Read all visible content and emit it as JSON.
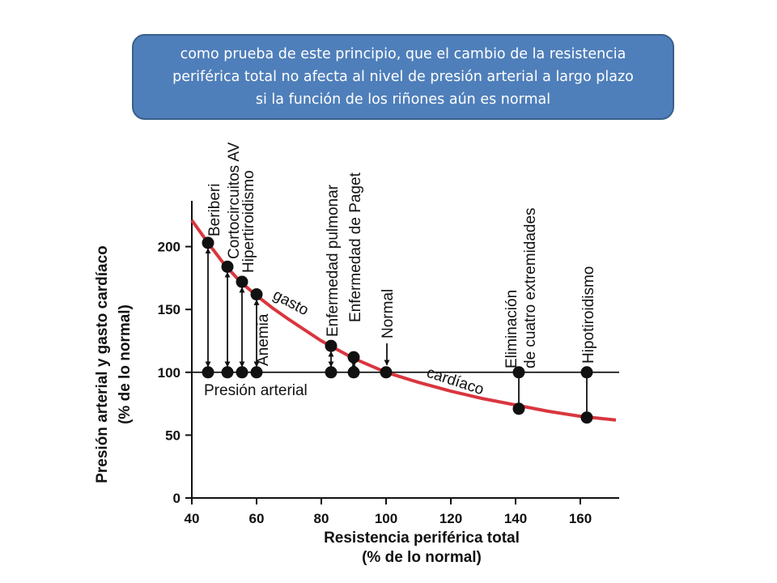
{
  "callout": {
    "lines": [
      "como prueba de este principio, que el cambio de la resistencia",
      "periférica total no afecta al nivel de presión arterial a largo plazo",
      "si la función de los riñones aún es normal"
    ]
  },
  "chart_data": {
    "type": "line",
    "xlabel": [
      "Resistencia periférica total",
      "(% de lo normal)"
    ],
    "ylabel": [
      "Presión arterial y gasto cardíaco",
      "(% de lo normal)"
    ],
    "xlim": [
      40,
      172
    ],
    "ylim": [
      0,
      230
    ],
    "xticks": [
      40,
      60,
      80,
      100,
      120,
      140,
      160
    ],
    "yticks": [
      0,
      50,
      100,
      150,
      200
    ],
    "grid": false,
    "colors": {
      "cardiac_output": "#d9363e",
      "pressure": "#111111"
    },
    "series": [
      {
        "name": "Presión arterial",
        "x": [
          40,
          172
        ],
        "y": [
          100,
          100
        ]
      },
      {
        "name": "gasto cardíaco",
        "label_words": [
          "gasto",
          "cardíaco"
        ],
        "x": [
          40,
          45,
          50,
          55,
          60,
          65,
          70,
          80,
          90,
          100,
          110,
          120,
          130,
          140,
          150,
          160,
          171
        ],
        "y": [
          221,
          203,
          186,
          172,
          161,
          151,
          142,
          125,
          111,
          100,
          92,
          85,
          79,
          74,
          69,
          65,
          62
        ]
      }
    ],
    "conditions": [
      {
        "label": [
          "Beriberi"
        ],
        "x": 45,
        "output": 203,
        "pressure": 100
      },
      {
        "label": [
          "Cortocircuitos AV"
        ],
        "x": 51,
        "output": 184,
        "pressure": 100
      },
      {
        "label": [
          "Hipertiroidismo"
        ],
        "x": 55.5,
        "output": 172,
        "pressure": 100
      },
      {
        "label": [
          "Anemia"
        ],
        "x": 60,
        "output": 162,
        "pressure": 100
      },
      {
        "label": [
          "Enfermedad pulmonar"
        ],
        "x": 83,
        "output": 121,
        "pressure": 100
      },
      {
        "label": [
          "Enfermedad de Paget"
        ],
        "x": 90,
        "output": 112,
        "pressure": 100
      },
      {
        "label": [
          "Normal"
        ],
        "x": 100,
        "output": 100,
        "pressure": 100
      },
      {
        "label": [
          "Eliminación",
          "de cuatro extremidades"
        ],
        "x": 141,
        "output": 71,
        "pressure": 100
      },
      {
        "label": [
          "Hipotiroidismo"
        ],
        "x": 162,
        "output": 64,
        "pressure": 100
      }
    ]
  }
}
